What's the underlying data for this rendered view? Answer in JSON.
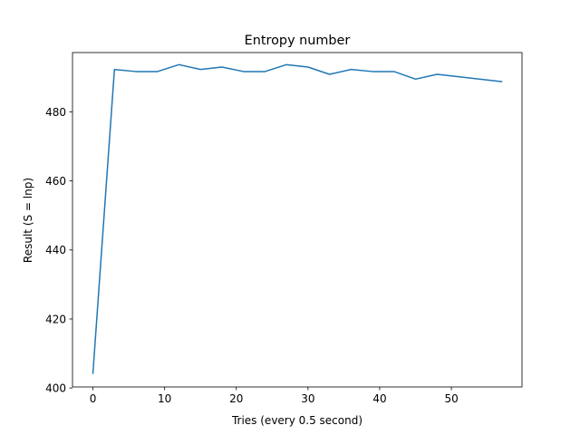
{
  "chart_data": {
    "type": "line",
    "title": "Entropy number",
    "xlabel": "Tries (every 0.5 second)",
    "ylabel": "Result (S = lnp)",
    "xlim": [
      -2.85,
      59.85
    ],
    "ylim": [
      400.3,
      497.2
    ],
    "xticks": [
      0,
      10,
      20,
      30,
      40,
      50
    ],
    "yticks": [
      400,
      420,
      440,
      460,
      480
    ],
    "grid": false,
    "legend": "none",
    "series": [
      {
        "color": "#1f77b4",
        "x": [
          0,
          3,
          6,
          9,
          12,
          15,
          18,
          21,
          24,
          27,
          30,
          33,
          36,
          39,
          42,
          45,
          48,
          51,
          54,
          57
        ],
        "y": [
          404.3,
          492.3,
          491.7,
          491.7,
          493.7,
          492.3,
          493.0,
          491.7,
          491.7,
          493.7,
          493.0,
          490.9,
          492.3,
          491.7,
          491.7,
          489.5,
          490.9,
          490.2,
          489.5,
          488.8
        ]
      }
    ]
  }
}
